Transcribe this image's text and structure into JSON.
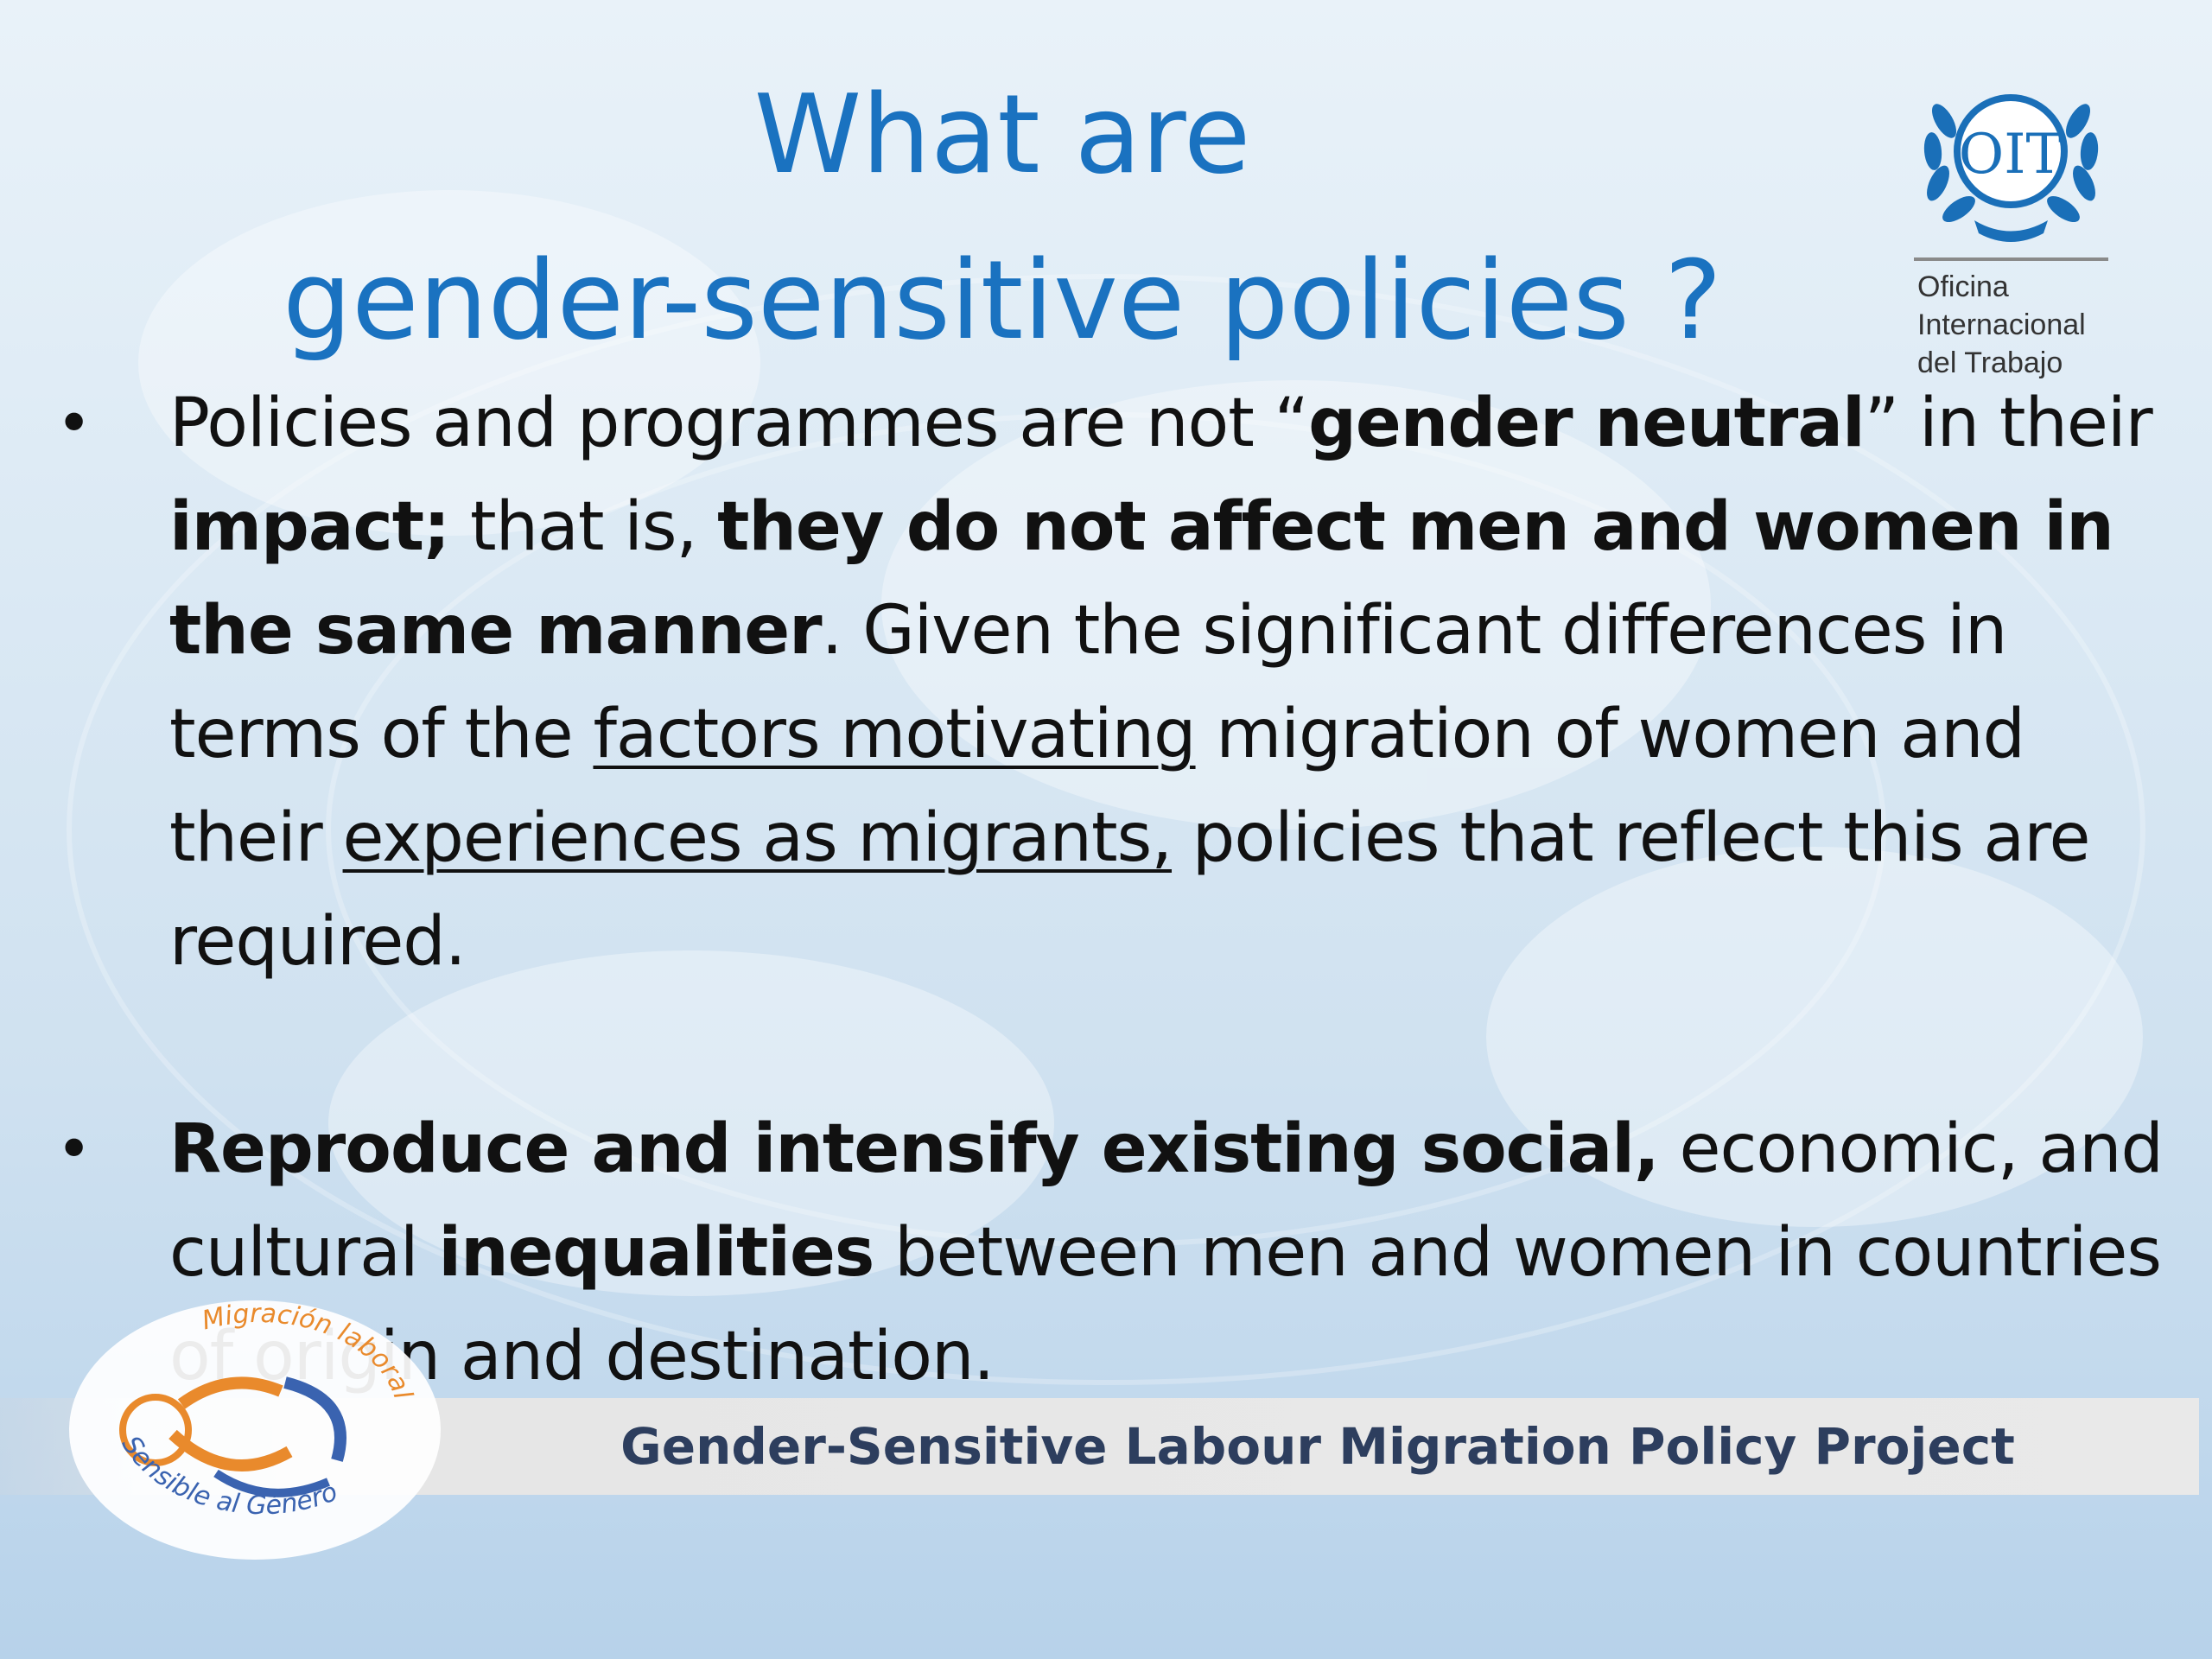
{
  "title": {
    "line1": "What are",
    "line2": "gender-sensitive policies ?"
  },
  "logo_oit": {
    "emblem_text": "OIT",
    "org_lines": [
      "Oficina",
      "Internacional",
      "del Trabajo"
    ]
  },
  "bullets": [
    {
      "segments": [
        {
          "text": "Policies and programmes are not “",
          "style": "normal"
        },
        {
          "text": "gender neutral",
          "style": "bold"
        },
        {
          "text": "” in their ",
          "style": "normal"
        },
        {
          "text": "impact;",
          "style": "bold"
        },
        {
          "text": " that is, ",
          "style": "normal"
        },
        {
          "text": "they do not affect men and women in the same manner",
          "style": "bold"
        },
        {
          "text": ".  Given the significant differences in terms of the ",
          "style": "normal"
        },
        {
          "text": "factors motivating",
          "style": "underline"
        },
        {
          "text": " migration of women and their ",
          "style": "normal"
        },
        {
          "text": "experiences as migrants,",
          "style": "underline"
        },
        {
          "text": " policies that reflect this are required.",
          "style": "normal"
        }
      ]
    },
    {
      "segments": [
        {
          "text": "Reproduce and intensify existing social,",
          "style": "bold"
        },
        {
          "text": " economic, and cultural ",
          "style": "normal"
        },
        {
          "text": "inequalities",
          "style": "bold"
        },
        {
          "text": " between men and women in countries of origin and destination.",
          "style": "normal"
        }
      ]
    }
  ],
  "bullet_symbol": "•",
  "footer": {
    "text": "Gender-Sensitive Labour Migration Policy Project"
  },
  "seal": {
    "top_text": "Migración laboral",
    "bottom_text": "Sensible al Género"
  },
  "colors": {
    "title": "#1a72c0",
    "footer_text": "#2d3e5e",
    "oit_blue": "#1a6fb8",
    "seal_orange": "#e98a2c",
    "seal_blue": "#3a63b0"
  }
}
